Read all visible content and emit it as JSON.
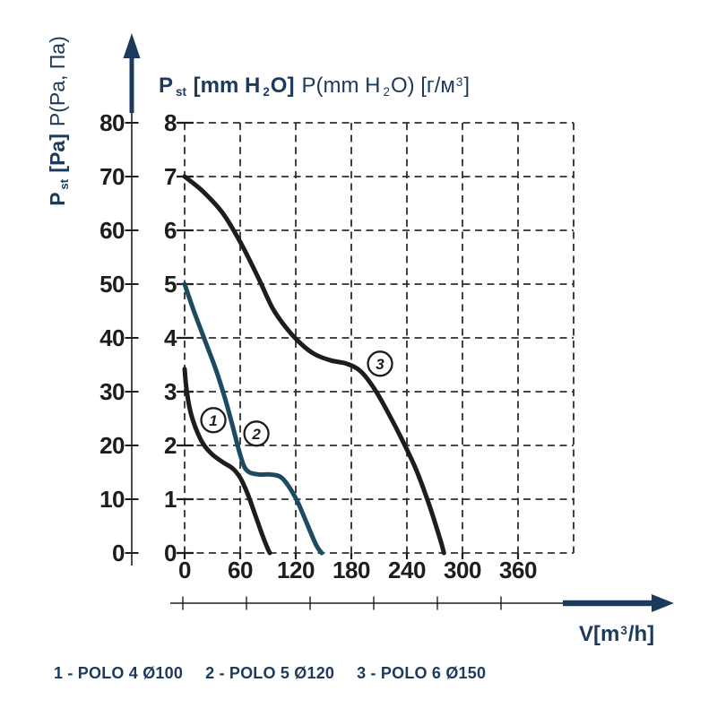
{
  "colors": {
    "navy": "#1b3a5c",
    "black": "#1d1d1b",
    "blue": "#1c4a60",
    "grid": "#2f2f2f",
    "background": "#ffffff",
    "marker_fill": "#ffffff"
  },
  "titles": {
    "inner": {
      "p": "P",
      "sub": "st",
      "bold_rest": " [mm H",
      "sub2": "2",
      "bold_rest2": "O]",
      "reg1": "P(mm H",
      "reg_sub": "2",
      "reg2": "O) [г/м",
      "reg_sup": "3",
      "reg3": "]"
    },
    "outer": {
      "p": "P",
      "sub": "st",
      "bold_rest": " [Pa]",
      "regular": "P(Pa, Па)"
    },
    "x": {
      "v": "V[m",
      "sup": "3",
      "rest": "/h]"
    }
  },
  "legend": {
    "items": [
      "1 - POLO 4 Ø100",
      "2 - POLO 5 Ø120",
      "3 - POLO 6 Ø150"
    ]
  },
  "chart_data": {
    "type": "line",
    "xlabel": "V[m³/h]",
    "ylabel_outer": "Pst [Pa] P(Pa, Па)",
    "ylabel_inner": "Pst [mm H₂O] P(mm H₂O) [г/м³]",
    "xlim": [
      0,
      420
    ],
    "ylim_inner_mmH2O": [
      0,
      8
    ],
    "ylim_outer_Pa": [
      0,
      80
    ],
    "x_ticks": [
      "0",
      "60",
      "120",
      "180",
      "240",
      "300",
      "360"
    ],
    "y_ticks_inner": [
      "8",
      "7",
      "6",
      "5",
      "4",
      "3",
      "2",
      "1",
      "0"
    ],
    "y_ticks_outer": [
      "80",
      "70",
      "60",
      "50",
      "40",
      "30",
      "20",
      "10",
      "0"
    ],
    "grid": "dashed",
    "legend_position": "bottom-left",
    "series": [
      {
        "id": "1",
        "name": "POLO 4 Ø100",
        "color_key": "black",
        "points": [
          [
            0,
            3.42
          ],
          [
            2,
            3.05
          ],
          [
            6,
            2.65
          ],
          [
            12,
            2.32
          ],
          [
            20,
            2.03
          ],
          [
            30,
            1.83
          ],
          [
            42,
            1.68
          ],
          [
            52,
            1.57
          ],
          [
            60,
            1.4
          ],
          [
            68,
            1.1
          ],
          [
            76,
            0.72
          ],
          [
            84,
            0.33
          ],
          [
            90,
            0.07
          ],
          [
            92,
            0
          ]
        ]
      },
      {
        "id": "2",
        "name": "POLO 5 Ø120",
        "color_key": "blue",
        "points": [
          [
            0,
            5.0
          ],
          [
            10,
            4.5
          ],
          [
            22,
            3.95
          ],
          [
            34,
            3.4
          ],
          [
            44,
            2.85
          ],
          [
            52,
            2.35
          ],
          [
            58,
            1.95
          ],
          [
            64,
            1.62
          ],
          [
            70,
            1.5
          ],
          [
            80,
            1.46
          ],
          [
            92,
            1.46
          ],
          [
            103,
            1.42
          ],
          [
            112,
            1.25
          ],
          [
            122,
            0.95
          ],
          [
            132,
            0.55
          ],
          [
            142,
            0.15
          ],
          [
            148,
            0
          ]
        ]
      },
      {
        "id": "3",
        "name": "POLO 6 Ø150",
        "color_key": "black",
        "points": [
          [
            0,
            7.0
          ],
          [
            20,
            6.72
          ],
          [
            42,
            6.3
          ],
          [
            62,
            5.72
          ],
          [
            80,
            5.1
          ],
          [
            95,
            4.55
          ],
          [
            110,
            4.18
          ],
          [
            125,
            3.9
          ],
          [
            140,
            3.7
          ],
          [
            158,
            3.58
          ],
          [
            175,
            3.52
          ],
          [
            190,
            3.38
          ],
          [
            205,
            3.05
          ],
          [
            220,
            2.6
          ],
          [
            235,
            2.1
          ],
          [
            250,
            1.55
          ],
          [
            264,
            0.9
          ],
          [
            276,
            0.25
          ],
          [
            280,
            0
          ]
        ]
      }
    ],
    "series_markers": [
      {
        "label": "1",
        "x": 31,
        "y": 2.47
      },
      {
        "label": "2",
        "x": 77.5,
        "y": 2.22
      },
      {
        "label": "3",
        "x": 211,
        "y": 3.52
      }
    ]
  }
}
